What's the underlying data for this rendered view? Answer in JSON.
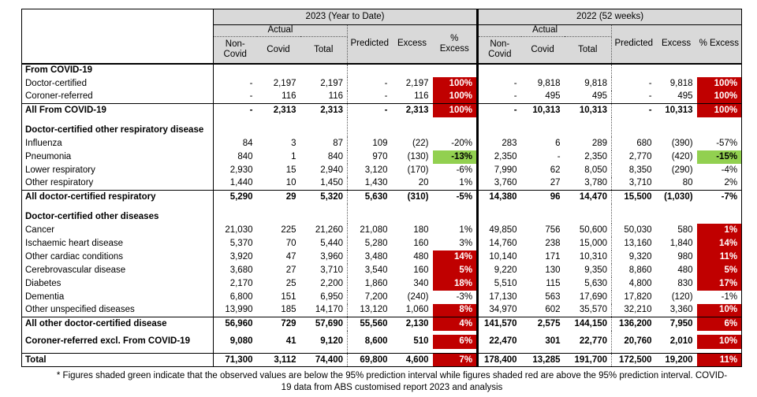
{
  "colors": {
    "header_bg": "#d9d9d9",
    "above_interval_red": "#c00000",
    "below_interval_green": "#92d050"
  },
  "table": {
    "year_groups": [
      {
        "label": "2023 (Year to Date)"
      },
      {
        "label": "2022 (52 weeks)"
      }
    ],
    "actual_label": "Actual",
    "sub_columns": {
      "non_covid": "Non-Covid",
      "covid": "Covid",
      "total": "Total",
      "predicted": "Predicted",
      "excess": "Excess",
      "pct_excess": "% Excess"
    },
    "rows": [
      {
        "type": "section",
        "label": "From COVID-19"
      },
      {
        "type": "data",
        "label": "Doctor-certified",
        "y2023": [
          "-",
          "2,197",
          "2,197",
          "-",
          "2,197",
          "100%"
        ],
        "shade2023": "red",
        "y2022": [
          "-",
          "9,818",
          "9,818",
          "-",
          "9,818",
          "100%"
        ],
        "shade2022": "red"
      },
      {
        "type": "data",
        "label": "Coroner-referred",
        "y2023": [
          "-",
          "116",
          "116",
          "-",
          "116",
          "100%"
        ],
        "shade2023": "red",
        "y2022": [
          "-",
          "495",
          "495",
          "-",
          "495",
          "100%"
        ],
        "shade2022": "red"
      },
      {
        "type": "total",
        "label": "All From COVID-19",
        "y2023": [
          "-",
          "2,313",
          "2,313",
          "-",
          "2,313",
          "100%"
        ],
        "shade2023": "red",
        "y2022": [
          "-",
          "10,313",
          "10,313",
          "-",
          "10,313",
          "100%"
        ],
        "shade2022": "red"
      },
      {
        "type": "section",
        "label": "Doctor-certified other respiratory disease"
      },
      {
        "type": "data",
        "label": "Influenza",
        "y2023": [
          "84",
          "3",
          "87",
          "109",
          "(22)",
          "-20%"
        ],
        "shade2023": null,
        "y2022": [
          "283",
          "6",
          "289",
          "680",
          "(390)",
          "-57%"
        ],
        "shade2022": null
      },
      {
        "type": "data",
        "label": "Pneumonia",
        "y2023": [
          "840",
          "1",
          "840",
          "970",
          "(130)",
          "-13%"
        ],
        "shade2023": "green",
        "y2022": [
          "2,350",
          "-",
          "2,350",
          "2,770",
          "(420)",
          "-15%"
        ],
        "shade2022": "green"
      },
      {
        "type": "data",
        "label": "Lower respiratory",
        "y2023": [
          "2,930",
          "15",
          "2,940",
          "3,120",
          "(170)",
          "-6%"
        ],
        "shade2023": null,
        "y2022": [
          "7,990",
          "62",
          "8,050",
          "8,350",
          "(290)",
          "-4%"
        ],
        "shade2022": null
      },
      {
        "type": "data",
        "label": "Other respiratory",
        "y2023": [
          "1,440",
          "10",
          "1,450",
          "1,430",
          "20",
          "1%"
        ],
        "shade2023": null,
        "y2022": [
          "3,760",
          "27",
          "3,780",
          "3,710",
          "80",
          "2%"
        ],
        "shade2022": null
      },
      {
        "type": "total",
        "label": "All doctor-certified respiratory",
        "y2023": [
          "5,290",
          "29",
          "5,320",
          "5,630",
          "(310)",
          "-5%"
        ],
        "shade2023": null,
        "y2022": [
          "14,380",
          "96",
          "14,470",
          "15,500",
          "(1,030)",
          "-7%"
        ],
        "shade2022": null
      },
      {
        "type": "section",
        "label": "Doctor-certified other diseases"
      },
      {
        "type": "data",
        "label": "Cancer",
        "y2023": [
          "21,030",
          "225",
          "21,260",
          "21,080",
          "180",
          "1%"
        ],
        "shade2023": null,
        "y2022": [
          "49,850",
          "756",
          "50,600",
          "50,030",
          "580",
          "1%"
        ],
        "shade2022": "red"
      },
      {
        "type": "data",
        "label": "Ischaemic heart disease",
        "y2023": [
          "5,370",
          "70",
          "5,440",
          "5,280",
          "160",
          "3%"
        ],
        "shade2023": null,
        "y2022": [
          "14,760",
          "238",
          "15,000",
          "13,160",
          "1,840",
          "14%"
        ],
        "shade2022": "red"
      },
      {
        "type": "data",
        "label": "Other cardiac conditions",
        "y2023": [
          "3,920",
          "47",
          "3,960",
          "3,480",
          "480",
          "14%"
        ],
        "shade2023": "red",
        "y2022": [
          "10,140",
          "171",
          "10,310",
          "9,320",
          "980",
          "11%"
        ],
        "shade2022": "red"
      },
      {
        "type": "data",
        "label": "Cerebrovascular disease",
        "y2023": [
          "3,680",
          "27",
          "3,710",
          "3,540",
          "160",
          "5%"
        ],
        "shade2023": "red",
        "y2022": [
          "9,220",
          "130",
          "9,350",
          "8,860",
          "480",
          "5%"
        ],
        "shade2022": "red"
      },
      {
        "type": "data",
        "label": "Diabetes",
        "y2023": [
          "2,170",
          "25",
          "2,200",
          "1,860",
          "340",
          "18%"
        ],
        "shade2023": "red",
        "y2022": [
          "5,510",
          "115",
          "5,630",
          "4,800",
          "830",
          "17%"
        ],
        "shade2022": "red"
      },
      {
        "type": "data",
        "label": "Dementia",
        "y2023": [
          "6,800",
          "151",
          "6,950",
          "7,200",
          "(240)",
          "-3%"
        ],
        "shade2023": null,
        "y2022": [
          "17,130",
          "563",
          "17,690",
          "17,820",
          "(120)",
          "-1%"
        ],
        "shade2022": null
      },
      {
        "type": "data",
        "label": "Other unspecified diseases",
        "y2023": [
          "13,990",
          "185",
          "14,170",
          "13,120",
          "1,060",
          "8%"
        ],
        "shade2023": "red",
        "y2022": [
          "34,970",
          "602",
          "35,570",
          "32,210",
          "3,360",
          "10%"
        ],
        "shade2022": "red"
      },
      {
        "type": "total",
        "label": "All other doctor-certified disease",
        "y2023": [
          "56,960",
          "729",
          "57,690",
          "55,560",
          "2,130",
          "4%"
        ],
        "shade2023": "red",
        "y2022": [
          "141,570",
          "2,575",
          "144,150",
          "136,200",
          "7,950",
          "6%"
        ],
        "shade2022": "red"
      },
      {
        "type": "boldgap",
        "label": "Coroner-referred excl. From COVID-19",
        "y2023": [
          "9,080",
          "41",
          "9,120",
          "8,600",
          "510",
          "6%"
        ],
        "shade2023": "red",
        "y2022": [
          "22,470",
          "301",
          "22,770",
          "20,760",
          "2,010",
          "10%"
        ],
        "shade2022": "red"
      },
      {
        "type": "total",
        "label": "Total",
        "y2023": [
          "71,300",
          "3,112",
          "74,400",
          "69,800",
          "4,600",
          "7%"
        ],
        "shade2023": "red",
        "y2022": [
          "178,400",
          "13,285",
          "191,700",
          "172,500",
          "19,200",
          "11%"
        ],
        "shade2022": "red"
      }
    ]
  },
  "footnote": {
    "line1": "* Figures shaded green indicate that the observed values are below the 95% prediction interval while figures shaded red are above the 95% prediction interval.  COVID-",
    "line2": "19 data from ABS customised report 2023 and analysis"
  }
}
